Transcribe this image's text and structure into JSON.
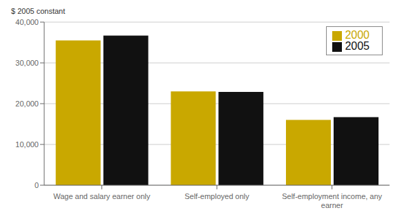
{
  "chart_data": {
    "type": "bar",
    "ylabel": "$ 2005 constant",
    "categories": [
      "Wage and salary earner only",
      "Self-employed only",
      "Self-employment income, any\nearner"
    ],
    "series": [
      {
        "name": "2000",
        "color": "#C9A800",
        "values": [
          35500,
          23000,
          16000
        ]
      },
      {
        "name": "2005",
        "color": "#111111",
        "values": [
          36700,
          22900,
          16700
        ]
      }
    ],
    "ylim": [
      0,
      40000
    ],
    "yticks": [
      0,
      {
        "value": 10000,
        "label": "10,000"
      },
      {
        "value": 20000,
        "label": "20,000"
      },
      {
        "value": 30000,
        "label": "30,000"
      },
      {
        "value": 40000,
        "label": "40,000"
      }
    ],
    "grid": true,
    "legend": "upper right"
  }
}
